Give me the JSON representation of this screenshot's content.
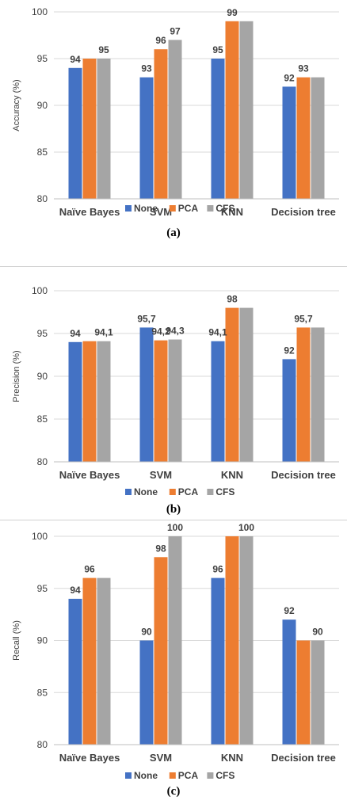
{
  "series_colors": {
    "None": "#4472c4",
    "PCA": "#ed7d31",
    "CFS": "#a5a5a5"
  },
  "chart_data": [
    {
      "type": "bar",
      "categories": [
        "Naïve Bayes",
        "SVM",
        "KNN",
        "Decision tree"
      ],
      "series": [
        {
          "name": "None",
          "values": [
            94,
            93,
            95,
            92
          ]
        },
        {
          "name": "PCA",
          "values": [
            95,
            96,
            99,
            93
          ]
        },
        {
          "name": "CFS",
          "values": [
            95,
            97,
            99,
            93
          ]
        }
      ],
      "labels": [
        {
          "text": "94",
          "series": 0,
          "category": 0
        },
        {
          "text": "95",
          "series": 2,
          "category": 0
        },
        {
          "text": "93",
          "series": 0,
          "category": 1
        },
        {
          "text": "96",
          "series": 1,
          "category": 1
        },
        {
          "text": "97",
          "series": 2,
          "category": 1
        },
        {
          "text": "95",
          "series": 0,
          "category": 2
        },
        {
          "text": "99",
          "series": 1,
          "category": 2
        },
        {
          "text": "92",
          "series": 0,
          "category": 3
        },
        {
          "text": "93",
          "series": 1,
          "category": 3
        }
      ],
      "ylabel": "Accuracy (%)",
      "ylim": [
        80,
        100
      ],
      "yticks": [
        "80",
        "85",
        "90",
        "95",
        "100"
      ],
      "grid": true,
      "legend": "bottom",
      "caption": "(a)"
    },
    {
      "type": "bar",
      "categories": [
        "Naïve Bayes",
        "SVM",
        "KNN",
        "Decision tree"
      ],
      "series": [
        {
          "name": "None",
          "values": [
            94,
            95.7,
            94.1,
            92
          ]
        },
        {
          "name": "PCA",
          "values": [
            94.1,
            94.2,
            98,
            95.7
          ]
        },
        {
          "name": "CFS",
          "values": [
            94.1,
            94.3,
            98,
            95.7
          ]
        }
      ],
      "labels": [
        {
          "text": "94",
          "series": 0,
          "category": 0
        },
        {
          "text": "94,1",
          "series": 2,
          "category": 0
        },
        {
          "text": "95,7",
          "series": 0,
          "category": 1
        },
        {
          "text": "94,2",
          "series": 1,
          "category": 1
        },
        {
          "text": "94,3",
          "series": 2,
          "category": 1
        },
        {
          "text": "94,1",
          "series": 0,
          "category": 2
        },
        {
          "text": "98",
          "series": 1,
          "category": 2
        },
        {
          "text": "92",
          "series": 0,
          "category": 3
        },
        {
          "text": "95,7",
          "series": 1,
          "category": 3
        }
      ],
      "ylabel": "Precision (%)",
      "ylim": [
        80,
        100
      ],
      "yticks": [
        "80",
        "85",
        "90",
        "95",
        "100"
      ],
      "grid": true,
      "legend": "bottom",
      "caption": "(b)"
    },
    {
      "type": "bar",
      "categories": [
        "Naïve Bayes",
        "SVM",
        "KNN",
        "Decision tree"
      ],
      "series": [
        {
          "name": "None",
          "values": [
            94,
            90,
            96,
            92
          ]
        },
        {
          "name": "PCA",
          "values": [
            96,
            98,
            100,
            90
          ]
        },
        {
          "name": "CFS",
          "values": [
            96,
            100,
            100,
            90
          ]
        }
      ],
      "labels": [
        {
          "text": "94",
          "series": 0,
          "category": 0
        },
        {
          "text": "96",
          "series": 1,
          "category": 0
        },
        {
          "text": "90",
          "series": 0,
          "category": 1
        },
        {
          "text": "98",
          "series": 1,
          "category": 1
        },
        {
          "text": "100",
          "series": 2,
          "category": 1
        },
        {
          "text": "96",
          "series": 0,
          "category": 2
        },
        {
          "text": "100",
          "series": 2,
          "category": 2
        },
        {
          "text": "92",
          "series": 0,
          "category": 3
        },
        {
          "text": "90",
          "series": 2,
          "category": 3
        }
      ],
      "ylabel": "Recall (%)",
      "ylim": [
        80,
        100
      ],
      "yticks": [
        "80",
        "85",
        "90",
        "95",
        "100"
      ],
      "grid": true,
      "legend": "bottom",
      "caption": "(c)"
    }
  ]
}
